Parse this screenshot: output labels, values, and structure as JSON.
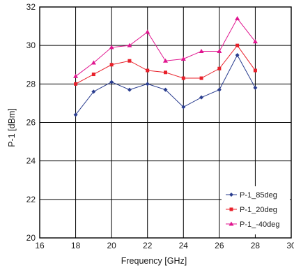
{
  "chart_data": {
    "type": "line",
    "xlabel": "Frequency [GHz]",
    "ylabel": "P-1 [dBm]",
    "xlim": [
      16,
      30
    ],
    "ylim": [
      20,
      32
    ],
    "xticks": [
      16,
      18,
      20,
      22,
      24,
      26,
      28,
      30
    ],
    "yticks": [
      20,
      22,
      24,
      26,
      28,
      30,
      32
    ],
    "grid": true,
    "legend_position": "bottom-right",
    "x": [
      18,
      19,
      20,
      21,
      22,
      23,
      24,
      25,
      26,
      27,
      28
    ],
    "series": [
      {
        "name": "P-1_85deg",
        "color": "#2a3d8f",
        "marker": "diamond",
        "values": [
          26.4,
          27.6,
          28.1,
          27.7,
          28.0,
          27.7,
          26.8,
          27.3,
          27.7,
          29.5,
          27.8
        ]
      },
      {
        "name": "P-1_20deg",
        "color": "#e8202a",
        "marker": "square",
        "values": [
          28.0,
          28.5,
          29.0,
          29.2,
          28.7,
          28.6,
          28.3,
          28.3,
          28.8,
          30.0,
          28.7
        ]
      },
      {
        "name": "P-1_-40deg",
        "color": "#e0158f",
        "marker": "triangle",
        "values": [
          28.4,
          29.1,
          29.9,
          30.0,
          30.7,
          29.2,
          29.3,
          29.7,
          29.7,
          31.4,
          30.2
        ]
      }
    ]
  }
}
